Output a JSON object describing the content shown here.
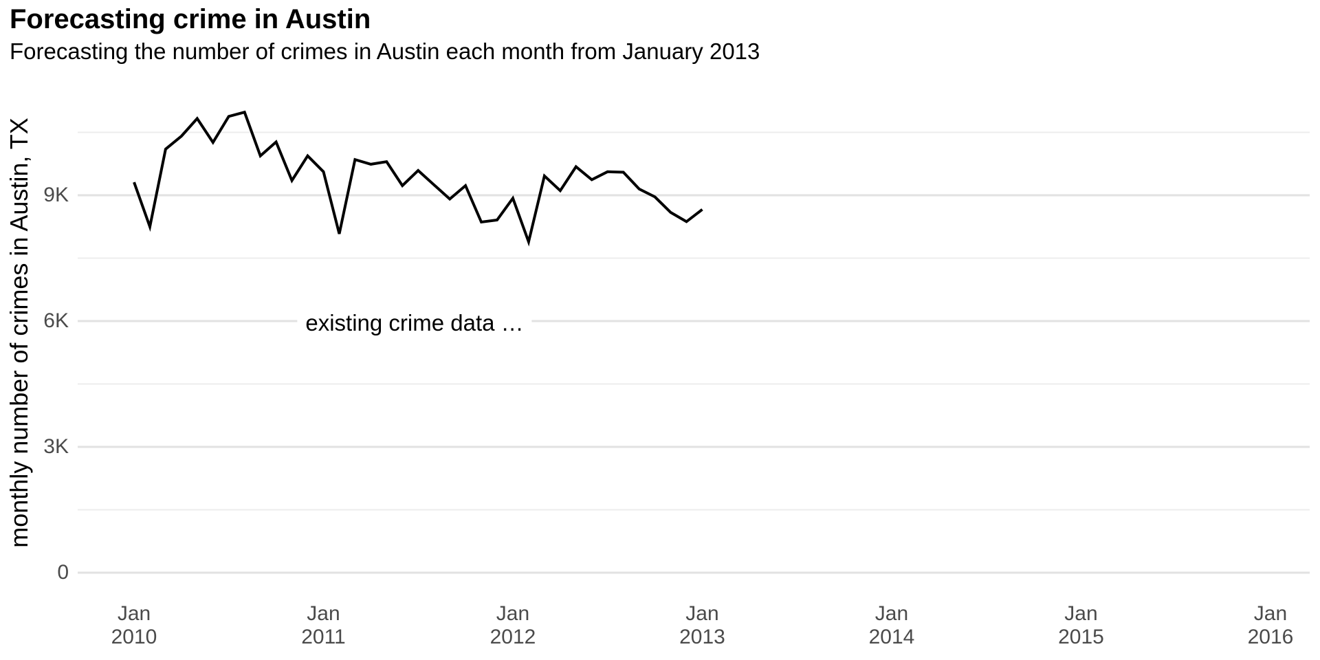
{
  "header": {
    "title": "Forecasting crime in Austin",
    "subtitle": "Forecasting the number of crimes in Austin each month from January 2013"
  },
  "chart_data": {
    "type": "line",
    "title": "Forecasting crime in Austin",
    "subtitle": "Forecasting the number of crimes in Austin each month from January 2013",
    "xlabel": "",
    "ylabel": "monthly number of crimes in Austin, TX",
    "grid": "horizontal-only",
    "legend": "none",
    "line_color": "#000000",
    "gridline_major_color": "#e2e2e2",
    "gridline_minor_color": "#ededed",
    "axis_text_color": "#4a4a4a",
    "ylim": [
      0,
      11600
    ],
    "x": [
      "Jan 2010",
      "Feb 2010",
      "Mar 2010",
      "Apr 2010",
      "May 2010",
      "Jun 2010",
      "Jul 2010",
      "Aug 2010",
      "Sep 2010",
      "Oct 2010",
      "Nov 2010",
      "Dec 2010",
      "Jan 2011",
      "Feb 2011",
      "Mar 2011",
      "Apr 2011",
      "May 2011",
      "Jun 2011",
      "Jul 2011",
      "Aug 2011",
      "Sep 2011",
      "Oct 2011",
      "Nov 2011",
      "Dec 2011",
      "Jan 2012",
      "Feb 2012",
      "Mar 2012",
      "Apr 2012",
      "May 2012",
      "Jun 2012",
      "Jul 2012",
      "Aug 2012",
      "Sep 2012",
      "Oct 2012",
      "Nov 2012",
      "Dec 2012",
      "Jan 2013"
    ],
    "series": [
      {
        "name": "existing crime data",
        "values": [
          9310,
          8250,
          10100,
          10410,
          10830,
          10260,
          10880,
          10980,
          9940,
          10270,
          9350,
          9940,
          9560,
          8080,
          9850,
          9740,
          9800,
          9230,
          9590,
          9250,
          8910,
          9230,
          8360,
          8410,
          8930,
          7890,
          9460,
          9110,
          9680,
          9370,
          9560,
          9550,
          9150,
          8960,
          8590,
          8370,
          8660
        ]
      }
    ],
    "yticks": [
      {
        "label": "0",
        "value": 0
      },
      {
        "label": "3K",
        "value": 3000
      },
      {
        "label": "6K",
        "value": 6000
      },
      {
        "label": "9K",
        "value": 9000
      }
    ],
    "yticks_minor": [
      1500,
      4500,
      7500,
      10500
    ],
    "xticks": [
      {
        "month": "Jan",
        "year": "2010"
      },
      {
        "month": "Jan",
        "year": "2011"
      },
      {
        "month": "Jan",
        "year": "2012"
      },
      {
        "month": "Jan",
        "year": "2013"
      },
      {
        "month": "Jan",
        "year": "2014"
      },
      {
        "month": "Jan",
        "year": "2015"
      },
      {
        "month": "Jan",
        "year": "2016"
      }
    ],
    "annotation": {
      "text": "existing crime data …",
      "x": "Jun 2011",
      "y": 6000
    }
  }
}
